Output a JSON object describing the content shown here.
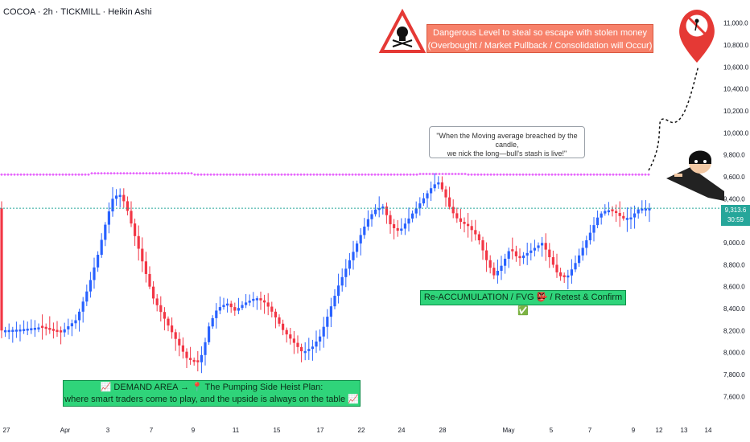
{
  "header": {
    "title": "COCOA · 2h · TICKMILL · Heikin Ashi"
  },
  "annotations": {
    "warning_line1": "Dangerous Level to steal so escape with stolen money",
    "warning_line2": "(Overbought / Market Pullback / Consolidation will Occur)",
    "quote_line1": "\"When the Moving average breached by the candle,",
    "quote_line2": "we nick the long—bull's stash is live!\"",
    "reaccumulation": "Re-ACCUMULATION / FVG 👺 / Retest & Confirm ✅",
    "demand_line1": "📈 DEMAND AREA → 📍 The Pumping Side Heist Plan:",
    "demand_line2": "where smart traders come to play, and the upside is always on the table 📈"
  },
  "price_tag": {
    "price": "9,313.6",
    "timer": "30:59"
  },
  "colors": {
    "up": "#2962ff",
    "down": "#f23645",
    "ma": "#e040fb",
    "current_line": "#26a69a",
    "accent_green": "#2fd47a",
    "warning": "#f7816a"
  },
  "chart_data": {
    "type": "candlestick",
    "style": "Heikin Ashi",
    "symbol": "COCOA",
    "interval": "2h",
    "exchange": "TICKMILL",
    "ylim": [
      7500,
      11100
    ],
    "y_ticks": [
      7600,
      7800,
      8000,
      8200,
      8400,
      8600,
      8800,
      9000,
      9200,
      9400,
      9600,
      9800,
      10000,
      10200,
      10400,
      10600,
      10800,
      11000
    ],
    "y_tick_labels": [
      "7,600.0",
      "7,800.0",
      "8,000.0",
      "8,200.0",
      "8,400.0",
      "8,600.0",
      "8,800.0",
      "9,000.0",
      "9,200.0",
      "9,400.0",
      "9,600.0",
      "9,800.0",
      "10,000.0",
      "10,200.0",
      "10,400.0",
      "10,600.0",
      "10,800.0",
      "11,000.0"
    ],
    "x_tick_labels": [
      "27",
      "Apr",
      "3",
      "7",
      "9",
      "11",
      "15",
      "17",
      "22",
      "24",
      "28",
      "May",
      "5",
      "7",
      "9",
      "12",
      "13",
      "14"
    ],
    "last_price": 9313.6,
    "moving_average_level": 9620,
    "grid": false,
    "price_path": [
      [
        0,
        8200
      ],
      [
        25,
        8210
      ],
      [
        50,
        8230
      ],
      [
        75,
        8180
      ],
      [
        95,
        8300
      ],
      [
        110,
        8600
      ],
      [
        122,
        8900
      ],
      [
        132,
        9200
      ],
      [
        140,
        9400
      ],
      [
        148,
        9450
      ],
      [
        156,
        9350
      ],
      [
        166,
        9100
      ],
      [
        178,
        8800
      ],
      [
        190,
        8500
      ],
      [
        205,
        8300
      ],
      [
        220,
        8100
      ],
      [
        232,
        7950
      ],
      [
        245,
        7900
      ],
      [
        252,
        8000
      ],
      [
        260,
        8250
      ],
      [
        270,
        8400
      ],
      [
        282,
        8450
      ],
      [
        292,
        8380
      ],
      [
        304,
        8450
      ],
      [
        318,
        8500
      ],
      [
        330,
        8450
      ],
      [
        340,
        8350
      ],
      [
        352,
        8200
      ],
      [
        364,
        8100
      ],
      [
        376,
        8000
      ],
      [
        388,
        8050
      ],
      [
        398,
        8150
      ],
      [
        408,
        8350
      ],
      [
        420,
        8600
      ],
      [
        432,
        8800
      ],
      [
        444,
        9000
      ],
      [
        456,
        9200
      ],
      [
        466,
        9300
      ],
      [
        476,
        9330
      ],
      [
        486,
        9150
      ],
      [
        496,
        9100
      ],
      [
        506,
        9200
      ],
      [
        516,
        9300
      ],
      [
        526,
        9400
      ],
      [
        536,
        9500
      ],
      [
        544,
        9560
      ],
      [
        552,
        9450
      ],
      [
        560,
        9300
      ],
      [
        570,
        9200
      ],
      [
        582,
        9150
      ],
      [
        594,
        9050
      ],
      [
        604,
        8850
      ],
      [
        614,
        8700
      ],
      [
        624,
        8800
      ],
      [
        634,
        8950
      ],
      [
        644,
        8850
      ],
      [
        654,
        8900
      ],
      [
        664,
        8950
      ],
      [
        674,
        9000
      ],
      [
        684,
        8850
      ],
      [
        694,
        8700
      ],
      [
        704,
        8680
      ],
      [
        714,
        8800
      ],
      [
        724,
        8950
      ],
      [
        734,
        9100
      ],
      [
        744,
        9250
      ],
      [
        754,
        9300
      ],
      [
        764,
        9280
      ],
      [
        774,
        9220
      ],
      [
        784,
        9230
      ],
      [
        794,
        9310
      ],
      [
        808,
        9313
      ]
    ]
  }
}
